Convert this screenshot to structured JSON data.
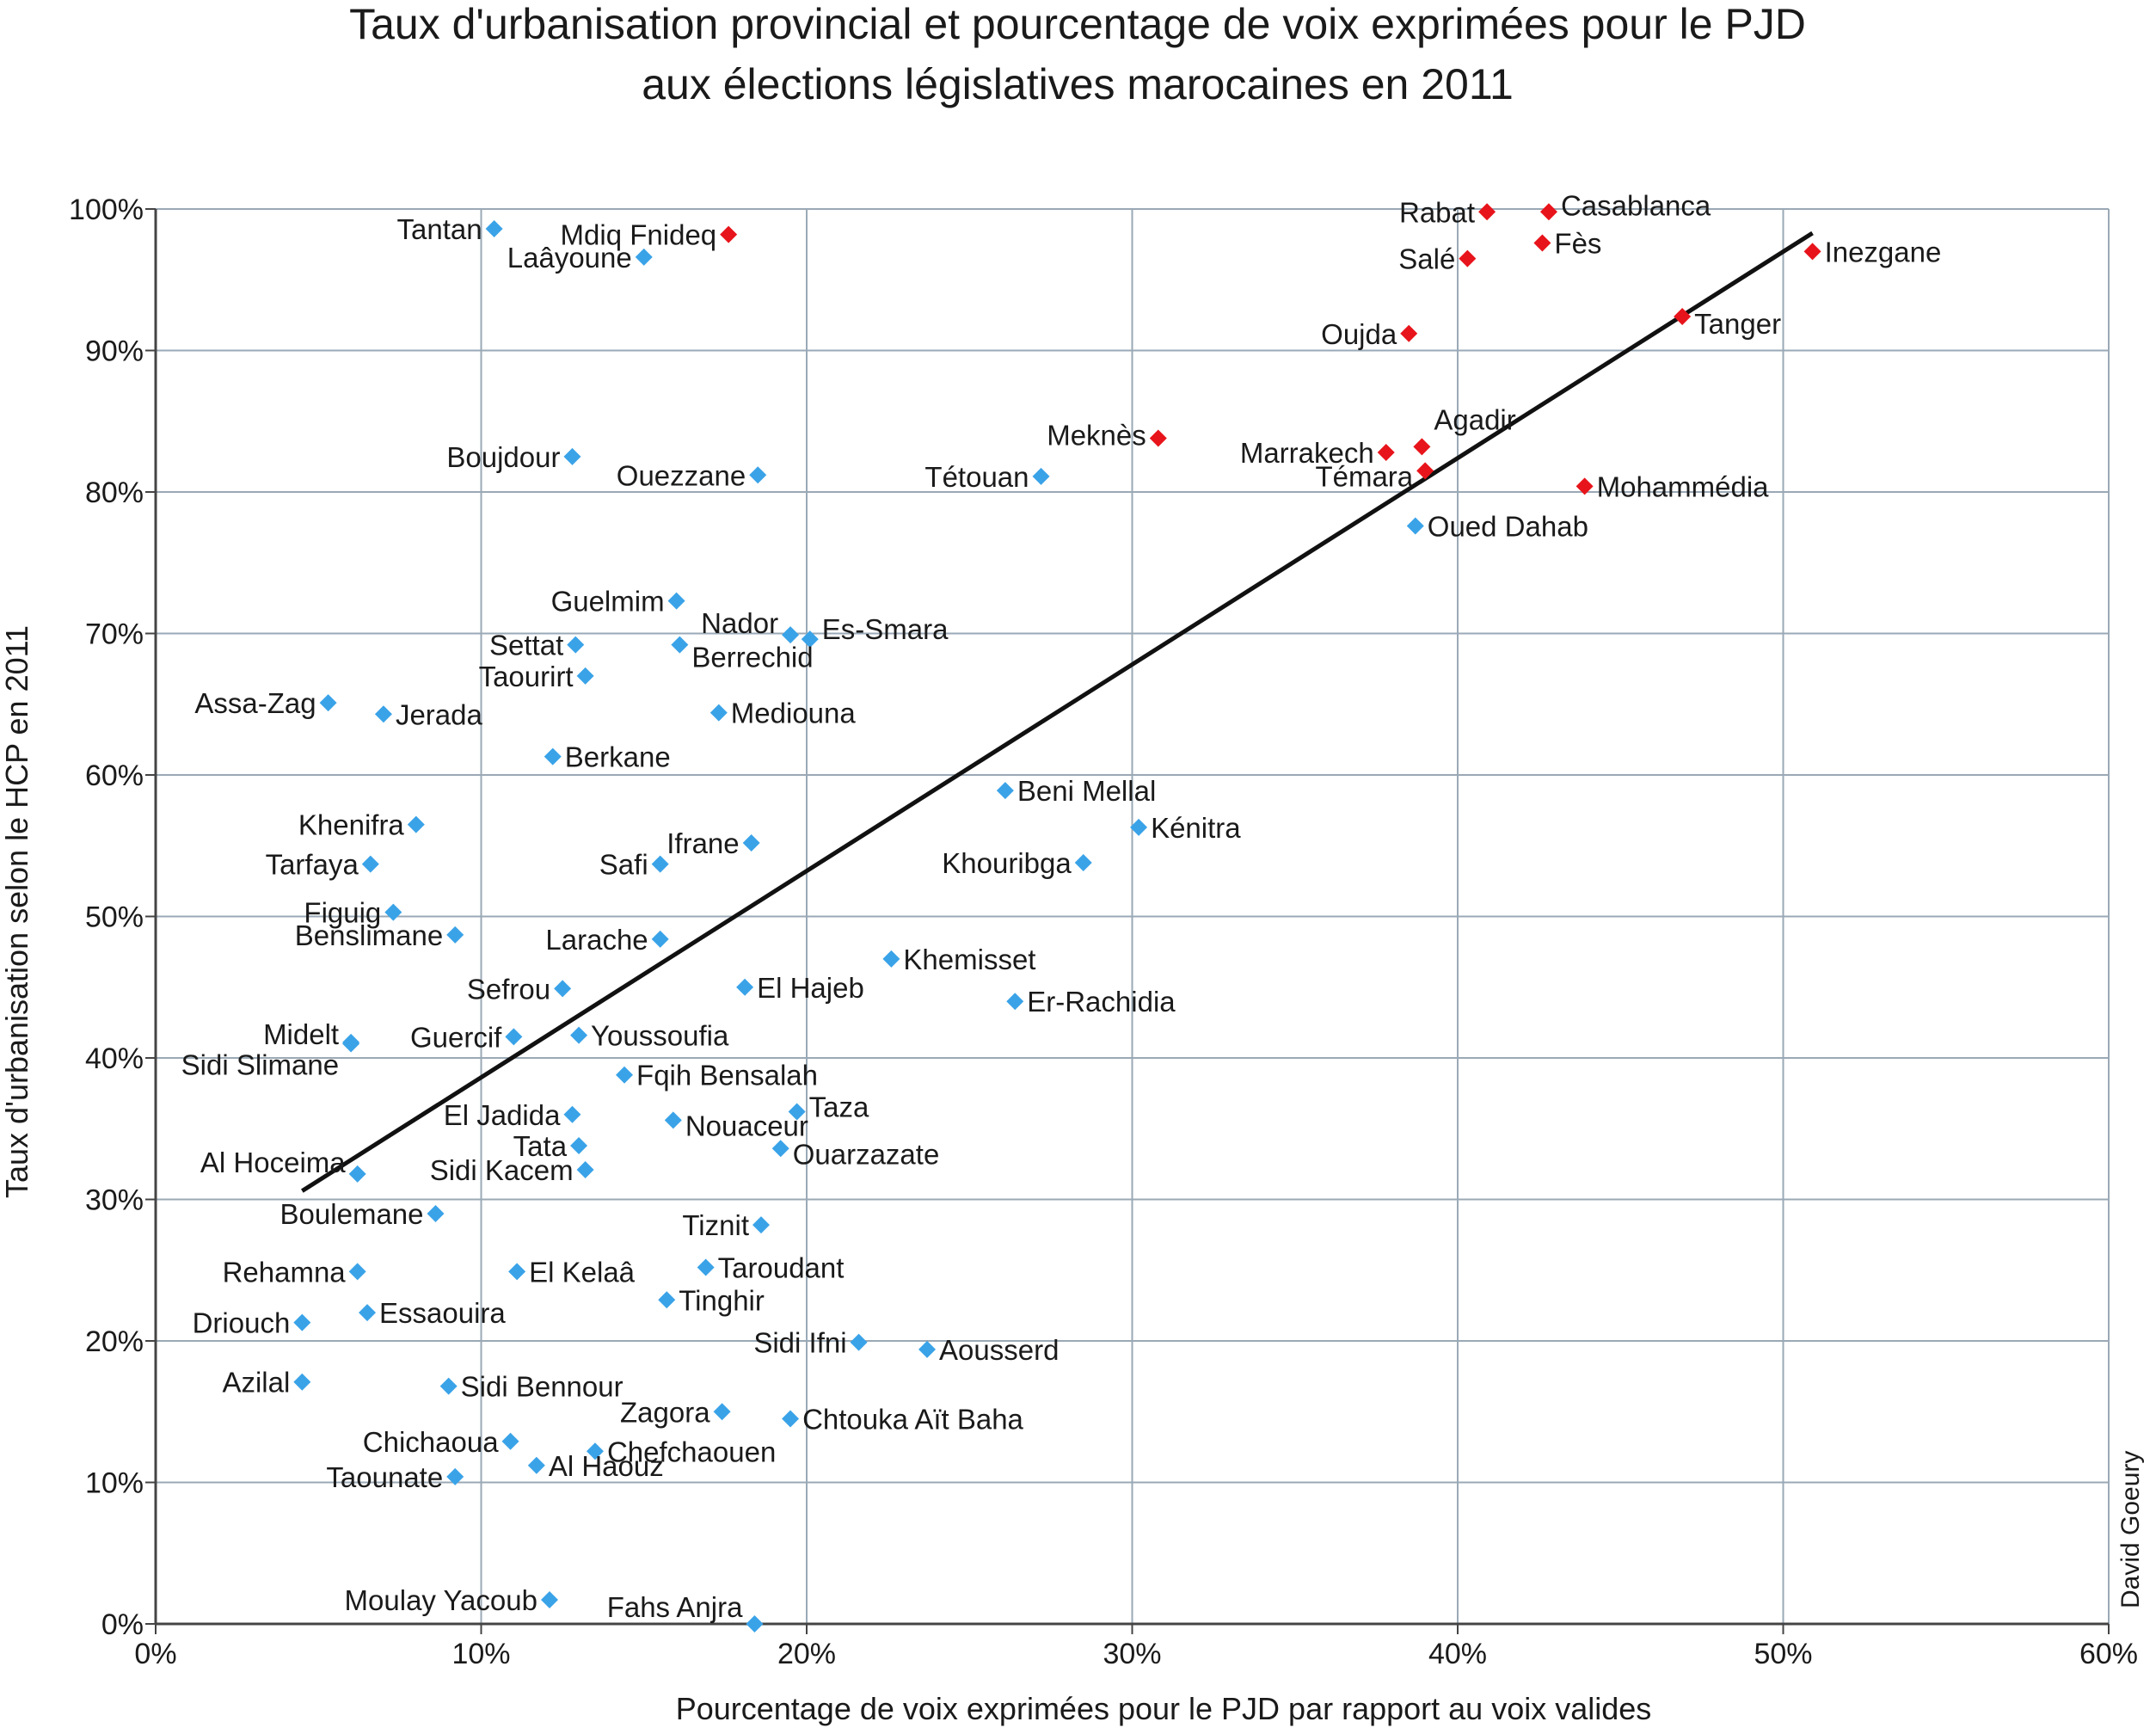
{
  "chart_data": {
    "type": "scatter",
    "title": [
      "Taux d'urbanisation provincial et pourcentage de voix exprimées pour le PJD",
      "aux élections législatives marocaines en 2011"
    ],
    "xlabel": "Pourcentage de voix exprimées pour le PJD par rapport au voix valides",
    "ylabel": "Taux d'urbanisation selon le HCP en 2011",
    "xlim": [
      0,
      60
    ],
    "ylim": [
      0,
      100
    ],
    "x_ticks": [
      0,
      10,
      20,
      30,
      40,
      50,
      60
    ],
    "y_ticks": [
      0,
      10,
      20,
      30,
      40,
      50,
      60,
      70,
      80,
      90,
      100
    ],
    "x_tick_labels": [
      "0%",
      "10%",
      "20%",
      "30%",
      "40%",
      "50%",
      "60%"
    ],
    "y_tick_labels": [
      "0%",
      "10%",
      "20%",
      "30%",
      "40%",
      "50%",
      "60%",
      "70%",
      "80%",
      "90%",
      "100%"
    ],
    "grid": true,
    "colors": {
      "red": "#e8141b",
      "blue": "#3aa3e8",
      "grid": "#9aa9b6",
      "line": "#111111"
    },
    "trendline": {
      "x": [
        4.5,
        50.9
      ],
      "y": [
        30.6,
        98.3
      ]
    },
    "credit": "David Goeury",
    "points": [
      {
        "label": "Rabat",
        "x": 40.9,
        "y": 99.8,
        "group": "red",
        "side": "left"
      },
      {
        "label": "Casablanca",
        "x": 42.8,
        "y": 99.8,
        "group": "red",
        "side": "right",
        "dy": -8
      },
      {
        "label": "Salé",
        "x": 40.3,
        "y": 96.5,
        "group": "red",
        "side": "left"
      },
      {
        "label": "Fès",
        "x": 42.6,
        "y": 97.6,
        "group": "red",
        "side": "right"
      },
      {
        "label": "Inezgane",
        "x": 50.9,
        "y": 97.0,
        "group": "red",
        "side": "right"
      },
      {
        "label": "Oujda",
        "x": 38.5,
        "y": 91.2,
        "group": "red",
        "side": "left"
      },
      {
        "label": "Tanger",
        "x": 46.9,
        "y": 92.4,
        "group": "red",
        "side": "right",
        "dy": 8
      },
      {
        "label": "Meknès",
        "x": 30.8,
        "y": 83.8,
        "group": "red",
        "side": "left",
        "dy": -4
      },
      {
        "label": "Agadir",
        "x": 38.9,
        "y": 83.2,
        "group": "red",
        "side": "right",
        "dy": -32
      },
      {
        "label": "Marrakech",
        "x": 37.8,
        "y": 82.8,
        "group": "red",
        "side": "left"
      },
      {
        "label": "Témara",
        "x": 39.0,
        "y": 81.5,
        "group": "red",
        "side": "left",
        "dy": 6
      },
      {
        "label": "Mohammédia",
        "x": 43.9,
        "y": 80.4,
        "group": "red",
        "side": "right"
      },
      {
        "label": "Tantan",
        "x": 10.4,
        "y": 98.6,
        "group": "blue",
        "side": "left"
      },
      {
        "label": "Mdiq Fnideq",
        "x": 17.6,
        "y": 98.2,
        "group": "red",
        "side": "left"
      },
      {
        "label": "Laâyoune",
        "x": 15.0,
        "y": 96.6,
        "group": "blue",
        "side": "left"
      },
      {
        "label": "Boujdour",
        "x": 12.8,
        "y": 82.5,
        "group": "blue",
        "side": "left"
      },
      {
        "label": "Ouezzane",
        "x": 18.5,
        "y": 81.2,
        "group": "blue",
        "side": "left"
      },
      {
        "label": "Tétouan",
        "x": 27.2,
        "y": 81.1,
        "group": "blue",
        "side": "left"
      },
      {
        "label": "Oued Dahab",
        "x": 38.7,
        "y": 77.6,
        "group": "blue",
        "side": "right"
      },
      {
        "label": "Guelmim",
        "x": 16.0,
        "y": 72.3,
        "group": "blue",
        "side": "left"
      },
      {
        "label": "Nador",
        "x": 19.5,
        "y": 69.9,
        "group": "blue",
        "side": "left",
        "dy": -14
      },
      {
        "label": "Es-Smara",
        "x": 20.1,
        "y": 69.6,
        "group": "blue",
        "side": "right",
        "dy": -12
      },
      {
        "label": "Settat",
        "x": 12.9,
        "y": 69.2,
        "group": "blue",
        "side": "left"
      },
      {
        "label": "Berrechid",
        "x": 16.1,
        "y": 69.2,
        "group": "blue",
        "side": "right",
        "dy": 14
      },
      {
        "label": "Taourirt",
        "x": 13.2,
        "y": 67.0,
        "group": "blue",
        "side": "left"
      },
      {
        "label": "Assa-Zag",
        "x": 5.3,
        "y": 65.1,
        "group": "blue",
        "side": "left"
      },
      {
        "label": "Jerada",
        "x": 7.0,
        "y": 64.3,
        "group": "blue",
        "side": "right"
      },
      {
        "label": "Mediouna",
        "x": 17.3,
        "y": 64.4,
        "group": "blue",
        "side": "right"
      },
      {
        "label": "Berkane",
        "x": 12.2,
        "y": 61.3,
        "group": "blue",
        "side": "right"
      },
      {
        "label": "Beni Mellal",
        "x": 26.1,
        "y": 58.9,
        "group": "blue",
        "side": "right"
      },
      {
        "label": "Khenifra",
        "x": 8.0,
        "y": 56.5,
        "group": "blue",
        "side": "left"
      },
      {
        "label": "Kénitra",
        "x": 30.2,
        "y": 56.3,
        "group": "blue",
        "side": "right"
      },
      {
        "label": "Ifrane",
        "x": 18.3,
        "y": 55.2,
        "group": "blue",
        "side": "left"
      },
      {
        "label": "Tarfaya",
        "x": 6.6,
        "y": 53.7,
        "group": "blue",
        "side": "left"
      },
      {
        "label": "Safi",
        "x": 15.5,
        "y": 53.7,
        "group": "blue",
        "side": "left"
      },
      {
        "label": "Khouribga",
        "x": 28.5,
        "y": 53.8,
        "group": "blue",
        "side": "left"
      },
      {
        "label": "Figuig",
        "x": 7.3,
        "y": 50.3,
        "group": "blue",
        "side": "left"
      },
      {
        "label": "Benslimane",
        "x": 9.2,
        "y": 48.7,
        "group": "blue",
        "side": "left"
      },
      {
        "label": "Larache",
        "x": 15.5,
        "y": 48.4,
        "group": "blue",
        "side": "left"
      },
      {
        "label": "Khemisset",
        "x": 22.6,
        "y": 47.0,
        "group": "blue",
        "side": "right"
      },
      {
        "label": "Sefrou",
        "x": 12.5,
        "y": 44.9,
        "group": "blue",
        "side": "left"
      },
      {
        "label": "El Hajeb",
        "x": 18.1,
        "y": 45.0,
        "group": "blue",
        "side": "right"
      },
      {
        "label": "Er-Rachidia",
        "x": 26.4,
        "y": 44.0,
        "group": "blue",
        "side": "right"
      },
      {
        "label": "Midelt",
        "x": 6.0,
        "y": 41.1,
        "group": "blue",
        "side": "left",
        "dy": -10
      },
      {
        "label": "Sidi Slimane",
        "x": 6.0,
        "y": 41.0,
        "group": "blue",
        "side": "left",
        "dy": 24
      },
      {
        "label": "Guercif",
        "x": 11.0,
        "y": 41.5,
        "group": "blue",
        "side": "left"
      },
      {
        "label": "Youssoufia",
        "x": 13.0,
        "y": 41.6,
        "group": "blue",
        "side": "right"
      },
      {
        "label": "Fqih Bensalah",
        "x": 14.4,
        "y": 38.8,
        "group": "blue",
        "side": "right"
      },
      {
        "label": "Taza",
        "x": 19.7,
        "y": 36.2,
        "group": "blue",
        "side": "right",
        "dy": -6
      },
      {
        "label": "El Jadida",
        "x": 12.8,
        "y": 36.0,
        "group": "blue",
        "side": "left"
      },
      {
        "label": "Nouaceur",
        "x": 15.9,
        "y": 35.6,
        "group": "blue",
        "side": "right",
        "dy": 6
      },
      {
        "label": "Tata",
        "x": 13.0,
        "y": 33.8,
        "group": "blue",
        "side": "left"
      },
      {
        "label": "Ouarzazate",
        "x": 19.2,
        "y": 33.6,
        "group": "blue",
        "side": "right",
        "dy": 6
      },
      {
        "label": "Al Hoceima",
        "x": 6.2,
        "y": 31.8,
        "group": "blue",
        "side": "left",
        "dy": -14
      },
      {
        "label": "Sidi Kacem",
        "x": 13.2,
        "y": 32.1,
        "group": "blue",
        "side": "left"
      },
      {
        "label": "Boulemane",
        "x": 8.6,
        "y": 29.0,
        "group": "blue",
        "side": "left"
      },
      {
        "label": "Tiznit",
        "x": 18.6,
        "y": 28.2,
        "group": "blue",
        "side": "left"
      },
      {
        "label": "Taroudant",
        "x": 16.9,
        "y": 25.2,
        "group": "blue",
        "side": "right"
      },
      {
        "label": "Rehamna",
        "x": 6.2,
        "y": 24.9,
        "group": "blue",
        "side": "left"
      },
      {
        "label": "El Kelaâ",
        "x": 11.1,
        "y": 24.9,
        "group": "blue",
        "side": "right"
      },
      {
        "label": "Tinghir",
        "x": 15.7,
        "y": 22.9,
        "group": "blue",
        "side": "right"
      },
      {
        "label": "Essaouira",
        "x": 6.5,
        "y": 22.0,
        "group": "blue",
        "side": "right"
      },
      {
        "label": "Driouch",
        "x": 4.5,
        "y": 21.3,
        "group": "blue",
        "side": "left"
      },
      {
        "label": "Sidi Ifni",
        "x": 21.6,
        "y": 19.9,
        "group": "blue",
        "side": "left"
      },
      {
        "label": "Aousserd",
        "x": 23.7,
        "y": 19.4,
        "group": "blue",
        "side": "right"
      },
      {
        "label": "Azilal",
        "x": 4.5,
        "y": 17.1,
        "group": "blue",
        "side": "left"
      },
      {
        "label": "Sidi Bennour",
        "x": 9.0,
        "y": 16.8,
        "group": "blue",
        "side": "right"
      },
      {
        "label": "Zagora",
        "x": 17.4,
        "y": 15.0,
        "group": "blue",
        "side": "left"
      },
      {
        "label": "Chtouka Aït Baha",
        "x": 19.5,
        "y": 14.5,
        "group": "blue",
        "side": "right"
      },
      {
        "label": "Chichaoua",
        "x": 10.9,
        "y": 12.9,
        "group": "blue",
        "side": "left"
      },
      {
        "label": "Chefchaouen",
        "x": 13.5,
        "y": 12.2,
        "group": "blue",
        "side": "right"
      },
      {
        "label": "Al Haouz",
        "x": 11.7,
        "y": 11.2,
        "group": "blue",
        "side": "right"
      },
      {
        "label": "Taounate",
        "x": 9.2,
        "y": 10.4,
        "group": "blue",
        "side": "left"
      },
      {
        "label": "Moulay Yacoub",
        "x": 12.1,
        "y": 1.7,
        "group": "blue",
        "side": "left"
      },
      {
        "label": "Fahs Anjra",
        "x": 18.4,
        "y": 0.0,
        "group": "blue",
        "side": "left",
        "dy": -20
      }
    ]
  }
}
